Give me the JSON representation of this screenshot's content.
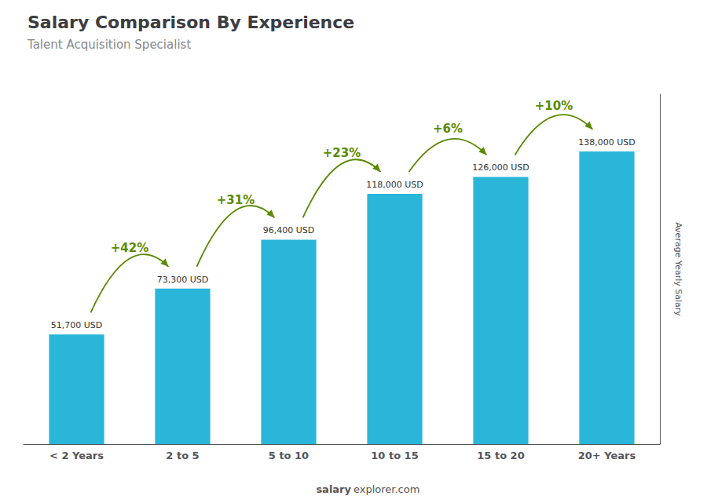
{
  "chart_data": {
    "type": "bar",
    "title": "Salary Comparison By Experience",
    "subtitle": "Talent Acquisition Specialist",
    "ylabel": "Average Yearly Salary",
    "categories": [
      "< 2 Years",
      "2 to 5",
      "5 to 10",
      "10 to 15",
      "15 to 20",
      "20+ Years"
    ],
    "values": [
      51700,
      73300,
      96400,
      118000,
      126000,
      138000
    ],
    "value_labels": [
      "51,700 USD",
      "73,300 USD",
      "96,400 USD",
      "118,000 USD",
      "126,000 USD",
      "138,000 USD"
    ],
    "data_labels": true,
    "color": "#29b6d8",
    "ylim": [
      0,
      165000
    ],
    "tick_labels": "x",
    "grid": false,
    "annotations": [
      {
        "text": "+42%",
        "from": "< 2 Years",
        "to": "2 to 5"
      },
      {
        "text": "+31%",
        "from": "2 to 5",
        "to": "5 to 10"
      },
      {
        "text": "+23%",
        "from": "5 to 10",
        "to": "10 to 15"
      },
      {
        "text": "+6%",
        "from": "10 to 15",
        "to": "15 to 20"
      },
      {
        "text": "+10%",
        "from": "15 to 20",
        "to": "20+ Years"
      }
    ],
    "watermark": [
      "salary",
      "explorer.com"
    ]
  }
}
